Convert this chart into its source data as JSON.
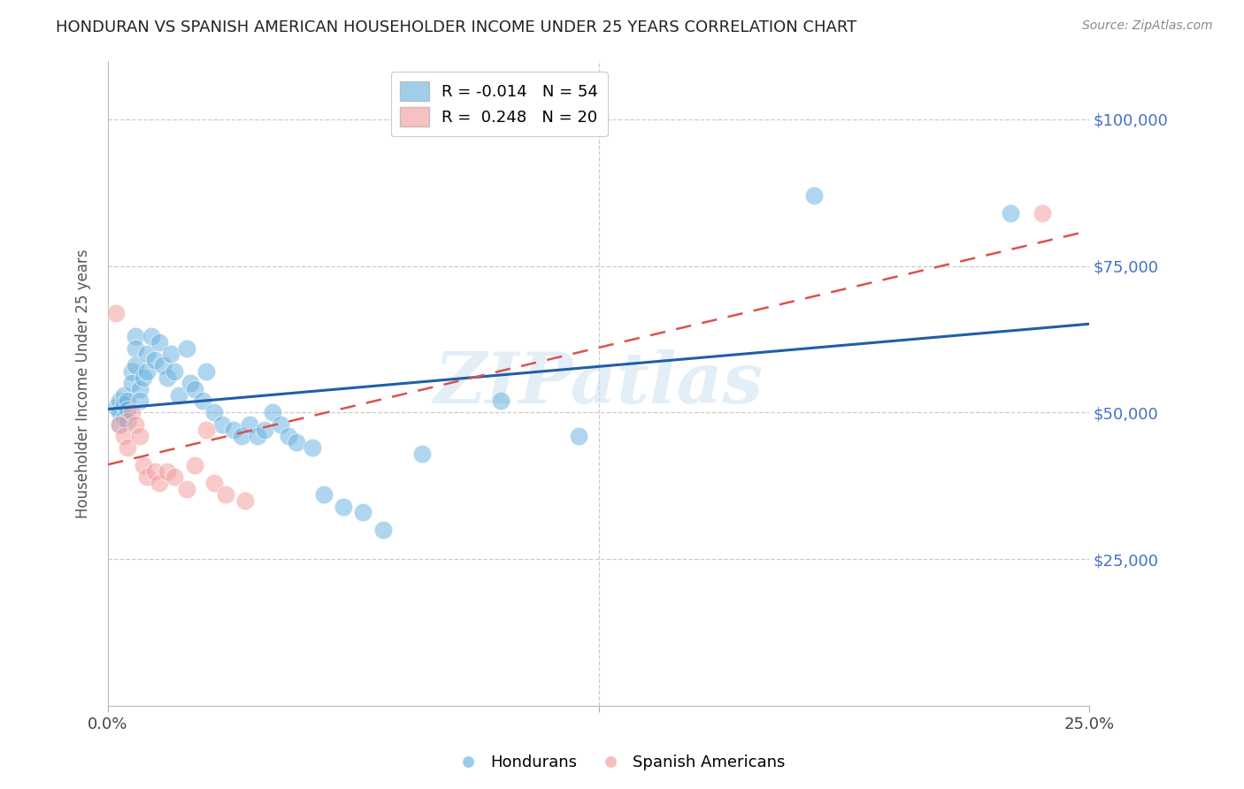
{
  "title": "HONDURAN VS SPANISH AMERICAN HOUSEHOLDER INCOME UNDER 25 YEARS CORRELATION CHART",
  "source": "Source: ZipAtlas.com",
  "ylabel": "Householder Income Under 25 years",
  "watermark": "ZIPatlas",
  "legend_hondurans_R": "-0.014",
  "legend_hondurans_N": "54",
  "legend_spanish_R": "0.248",
  "legend_spanish_N": "20",
  "hondurans_color": "#6eb5e0",
  "spanish_color": "#f4a0a0",
  "trendline_hondurans_color": "#1f5fa6",
  "trendline_spanish_color": "#d9534f",
  "xlim": [
    0.0,
    0.25
  ],
  "ylim": [
    0,
    110000
  ],
  "yticks": [
    0,
    25000,
    50000,
    75000,
    100000
  ],
  "ytick_labels": [
    "",
    "$25,000",
    "$50,000",
    "$75,000",
    "$100,000"
  ],
  "xtick_positions": [
    0.0,
    0.125,
    0.25
  ],
  "xtick_labels": [
    "0.0%",
    "",
    "25.0%"
  ],
  "grid_color": "#cccccc",
  "background_color": "#ffffff",
  "title_color": "#222222",
  "axis_label_color": "#555555",
  "ytick_color": "#4472c4",
  "xtick_color": "#444444",
  "hondurans_x": [
    0.002,
    0.003,
    0.003,
    0.003,
    0.004,
    0.004,
    0.004,
    0.005,
    0.005,
    0.005,
    0.006,
    0.006,
    0.007,
    0.007,
    0.007,
    0.008,
    0.008,
    0.009,
    0.01,
    0.01,
    0.011,
    0.012,
    0.013,
    0.014,
    0.015,
    0.016,
    0.017,
    0.018,
    0.02,
    0.021,
    0.022,
    0.024,
    0.025,
    0.027,
    0.029,
    0.032,
    0.034,
    0.036,
    0.038,
    0.04,
    0.042,
    0.044,
    0.046,
    0.048,
    0.052,
    0.055,
    0.06,
    0.065,
    0.07,
    0.08,
    0.1,
    0.12,
    0.18,
    0.23
  ],
  "hondurans_y": [
    51000,
    52000,
    50000,
    48000,
    53000,
    51500,
    49000,
    52000,
    50500,
    48500,
    57000,
    55000,
    63000,
    61000,
    58000,
    54000,
    52000,
    56000,
    60000,
    57000,
    63000,
    59000,
    62000,
    58000,
    56000,
    60000,
    57000,
    53000,
    61000,
    55000,
    54000,
    52000,
    57000,
    50000,
    48000,
    47000,
    46000,
    48000,
    46000,
    47000,
    50000,
    48000,
    46000,
    45000,
    44000,
    36000,
    34000,
    33000,
    30000,
    43000,
    52000,
    46000,
    87000,
    84000
  ],
  "spanish_x": [
    0.002,
    0.003,
    0.004,
    0.005,
    0.006,
    0.007,
    0.008,
    0.009,
    0.01,
    0.012,
    0.013,
    0.015,
    0.017,
    0.02,
    0.022,
    0.025,
    0.027,
    0.03,
    0.035,
    0.238
  ],
  "spanish_y": [
    67000,
    48000,
    46000,
    44000,
    50000,
    48000,
    46000,
    41000,
    39000,
    40000,
    38000,
    40000,
    39000,
    37000,
    41000,
    47000,
    38000,
    36000,
    35000,
    84000
  ]
}
